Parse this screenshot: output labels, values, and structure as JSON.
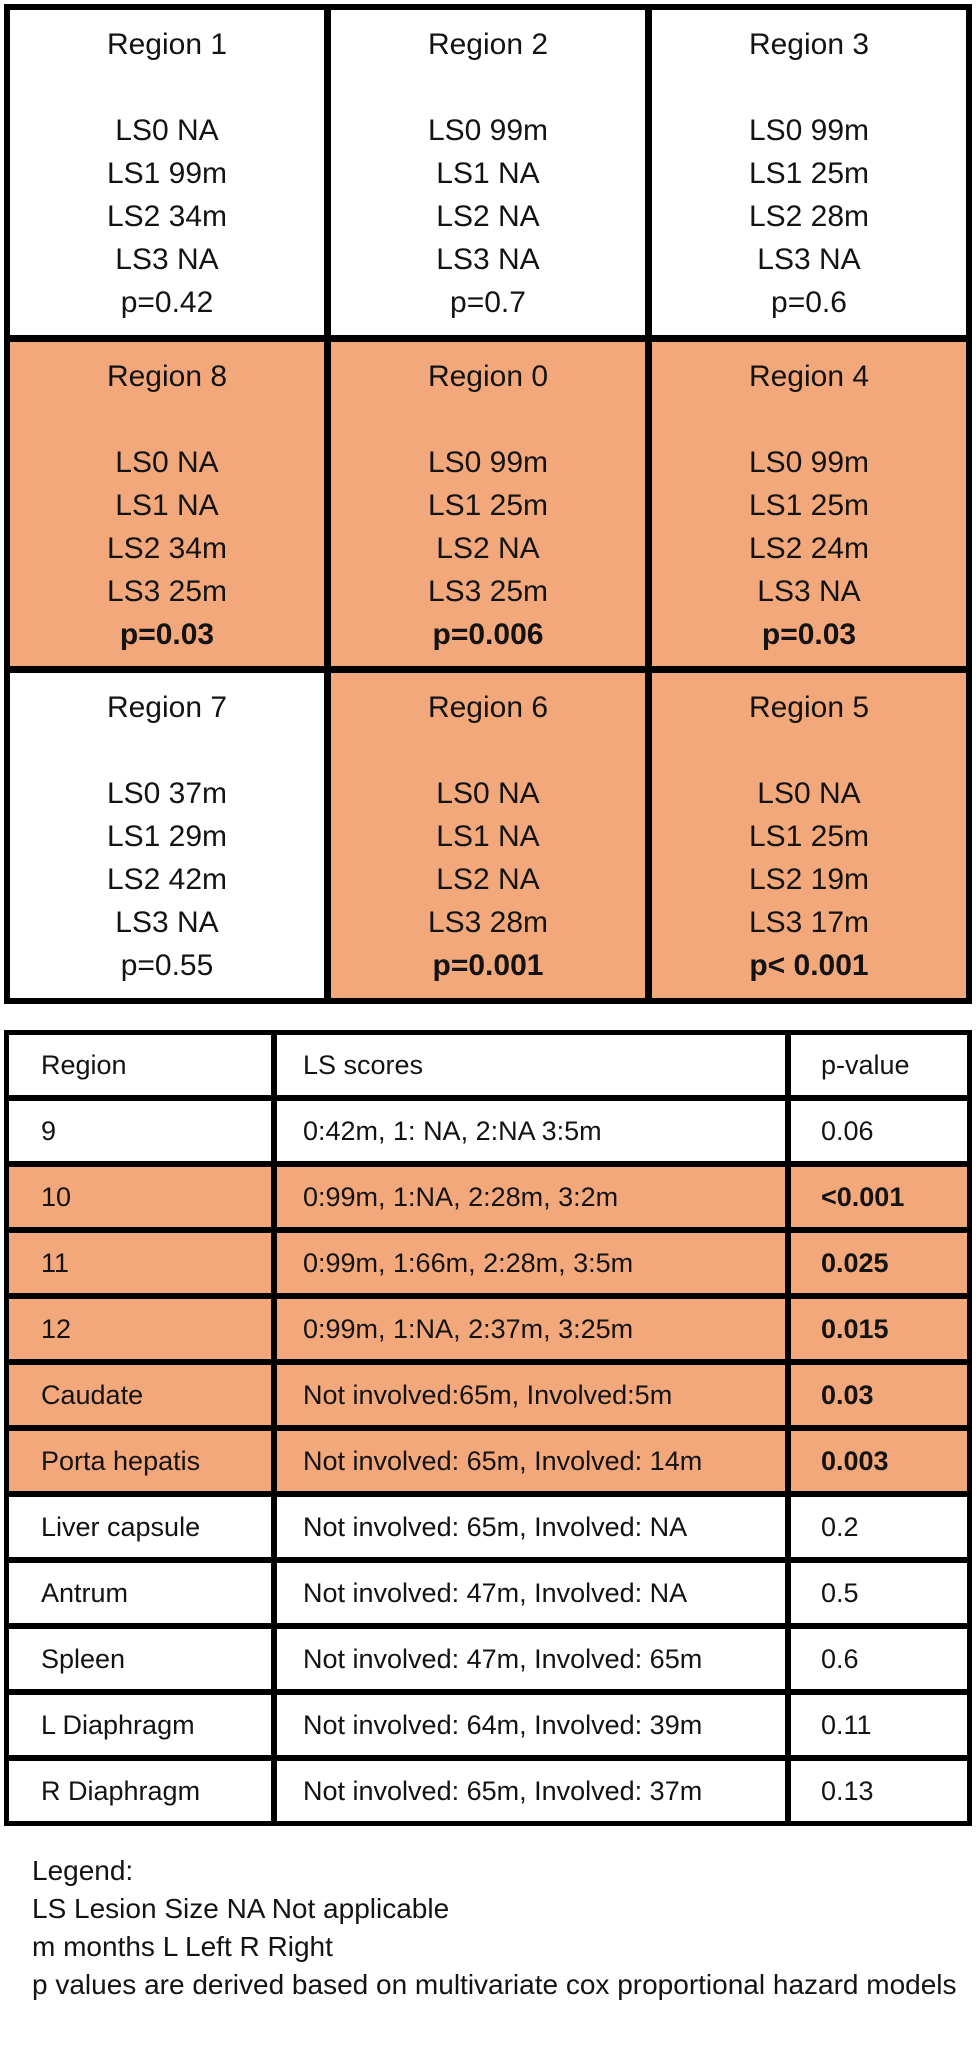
{
  "grid": {
    "cells": [
      {
        "title": "Region 1",
        "lines": [
          "LS0 NA",
          "LS1 99m",
          "LS2 34m",
          "LS3 NA"
        ],
        "p": "p=0.42",
        "highlight": false
      },
      {
        "title": "Region 2",
        "lines": [
          "LS0 99m",
          "LS1 NA",
          "LS2 NA",
          "LS3 NA"
        ],
        "p": "p=0.7",
        "highlight": false
      },
      {
        "title": "Region 3",
        "lines": [
          "LS0 99m",
          "LS1 25m",
          "LS2 28m",
          "LS3 NA"
        ],
        "p": "p=0.6",
        "highlight": false
      },
      {
        "title": "Region 8",
        "lines": [
          "LS0 NA",
          "LS1 NA",
          "LS2 34m",
          "LS3 25m"
        ],
        "p": "p=0.03",
        "highlight": true
      },
      {
        "title": "Region 0",
        "lines": [
          "LS0 99m",
          "LS1 25m",
          "LS2 NA",
          "LS3 25m"
        ],
        "p": "p=0.006",
        "highlight": true
      },
      {
        "title": "Region 4",
        "lines": [
          "LS0 99m",
          "LS1 25m",
          "LS2 24m",
          "LS3 NA"
        ],
        "p": "p=0.03",
        "highlight": true
      },
      {
        "title": "Region 7",
        "lines": [
          "LS0 37m",
          "LS1 29m",
          "LS2 42m",
          "LS3 NA"
        ],
        "p": "p=0.55",
        "highlight": false
      },
      {
        "title": "Region 6",
        "lines": [
          "LS0 NA",
          "LS1 NA",
          "LS2 NA",
          "LS3 28m"
        ],
        "p": "p=0.001",
        "highlight": true
      },
      {
        "title": "Region 5",
        "lines": [
          "LS0 NA",
          "LS1 25m",
          "LS2 19m",
          "LS3 17m"
        ],
        "p": "p< 0.001",
        "highlight": true
      }
    ]
  },
  "table": {
    "headers": [
      "Region",
      "LS scores",
      "p-value"
    ],
    "rows": [
      {
        "region": "9",
        "scores": "0:42m, 1: NA, 2:NA 3:5m",
        "p": "0.06",
        "highlight": false
      },
      {
        "region": "10",
        "scores": "0:99m, 1:NA, 2:28m, 3:2m",
        "p": "<0.001",
        "highlight": true
      },
      {
        "region": "11",
        "scores": "0:99m, 1:66m, 2:28m, 3:5m",
        "p": "0.025",
        "highlight": true
      },
      {
        "region": "12",
        "scores": "0:99m, 1:NA, 2:37m, 3:25m",
        "p": "0.015",
        "highlight": true
      },
      {
        "region": "Caudate",
        "scores": "Not involved:65m, Involved:5m",
        "p": "0.03",
        "highlight": true
      },
      {
        "region": "Porta hepatis",
        "scores": "Not involved: 65m, Involved: 14m",
        "p": "0.003",
        "highlight": true
      },
      {
        "region": "Liver capsule",
        "scores": "Not involved: 65m, Involved: NA",
        "p": "0.2",
        "highlight": false
      },
      {
        "region": "Antrum",
        "scores": "Not involved: 47m, Involved: NA",
        "p": "0.5",
        "highlight": false
      },
      {
        "region": "Spleen",
        "scores": "Not involved: 47m, Involved: 65m",
        "p": "0.6",
        "highlight": false
      },
      {
        "region": "L Diaphragm",
        "scores": "Not involved: 64m, Involved: 39m",
        "p": "0.11",
        "highlight": false
      },
      {
        "region": "R Diaphragm",
        "scores": "Not involved: 65m, Involved: 37m",
        "p": "0.13",
        "highlight": false
      }
    ]
  },
  "legend": {
    "lines": [
      "Legend:",
      "LS Lesion Size NA Not applicable",
      "m months L Left R Right",
      "p values are derived based on multivariate cox proportional hazard models"
    ]
  },
  "colors": {
    "highlight": "#F3A87B",
    "border": "#000000",
    "background": "#FFFFFF",
    "text": "#131313"
  }
}
